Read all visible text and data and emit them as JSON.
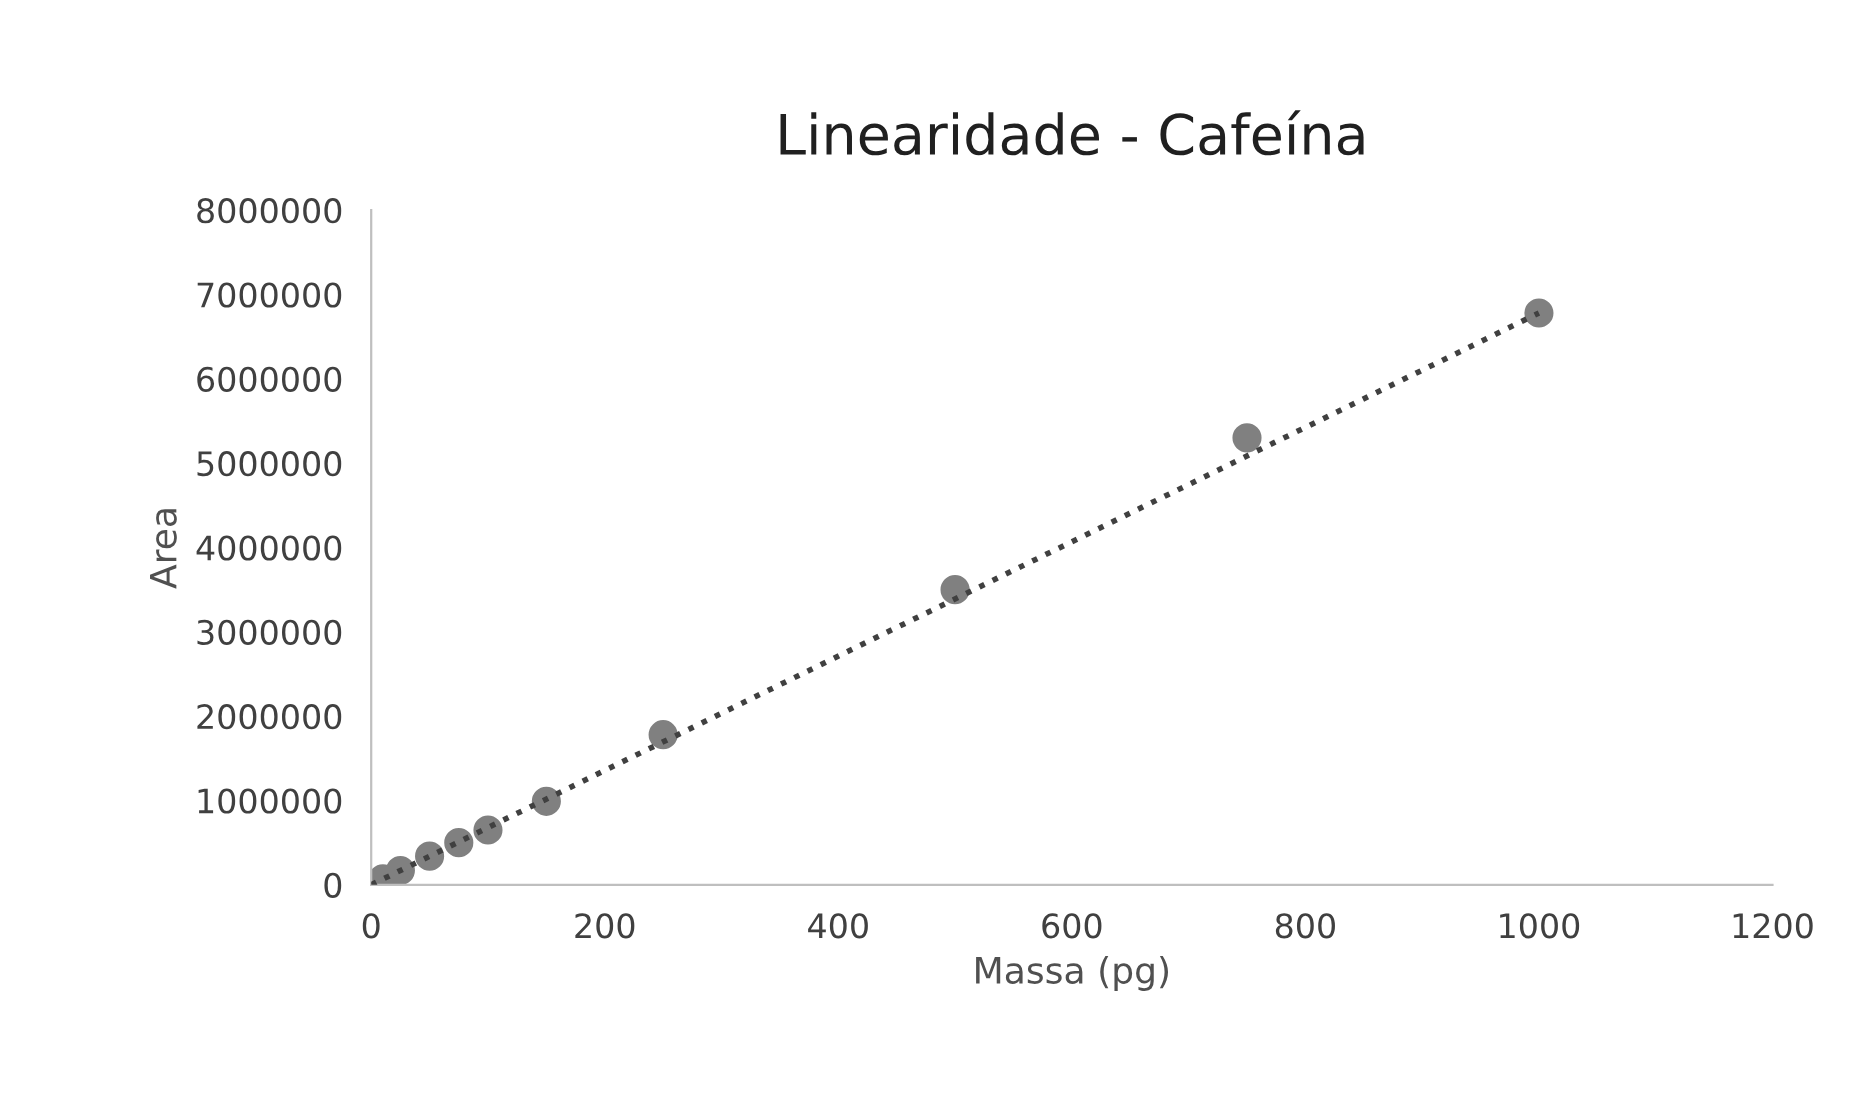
{
  "chart_data": {
    "type": "scatter",
    "title": "Linearidade - Cafeína",
    "xlabel": "Massa (pg)",
    "ylabel": "Area",
    "xlim": [
      0,
      1200
    ],
    "xticks": [
      0,
      200,
      400,
      600,
      800,
      1000,
      1200
    ],
    "ylim": [
      0,
      8000000
    ],
    "yticks": [
      0,
      1000000,
      2000000,
      3000000,
      4000000,
      5000000,
      6000000,
      7000000,
      8000000
    ],
    "grid": false,
    "legend": false,
    "series": [
      {
        "color": "#808080",
        "marker": "circle",
        "x": [
          10,
          25,
          50,
          75,
          100,
          150,
          250,
          500,
          750,
          1000
        ],
        "values": [
          70000,
          170000,
          340000,
          500000,
          650000,
          990000,
          1780000,
          3500000,
          5300000,
          6780000
        ]
      },
      {
        "type": "line",
        "color": "#404040",
        "line_style": "dotted",
        "marker": "none",
        "x": [
          0,
          1000
        ],
        "values": [
          0,
          6780000
        ]
      }
    ]
  }
}
